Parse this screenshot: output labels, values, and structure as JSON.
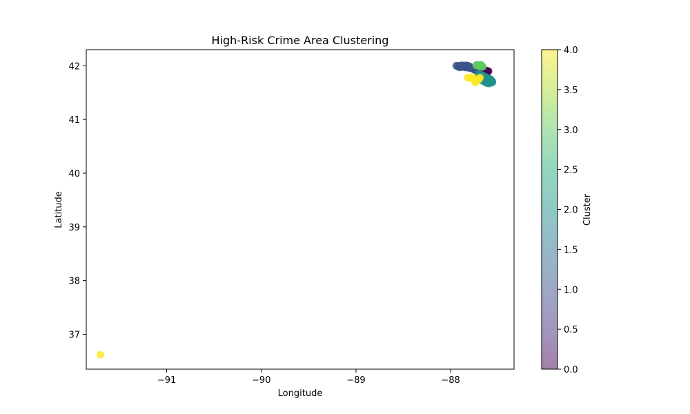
{
  "chart_data": {
    "type": "scatter",
    "title": "High-Risk Crime Area Clustering",
    "xlabel": "Longitude",
    "ylabel": "Latitude",
    "xlim": [
      -91.85,
      -87.33
    ],
    "ylim": [
      36.35,
      42.3
    ],
    "xticks": [
      -91,
      -90,
      -89,
      -88
    ],
    "yticks": [
      37,
      38,
      39,
      40,
      41,
      42
    ],
    "grid": false,
    "colorbar": {
      "label": "Cluster",
      "range": [
        0.0,
        4.0
      ],
      "ticks": [
        "0.0",
        "0.5",
        "1.0",
        "1.5",
        "2.0",
        "2.5",
        "3.0",
        "3.5",
        "4.0"
      ],
      "colormap": "viridis",
      "alpha": 0.5
    },
    "point_alpha": 0.85,
    "series": [
      {
        "cluster": 0,
        "color": "#440154",
        "points": [
          [
            -87.63,
            41.9
          ],
          [
            -87.61,
            41.89
          ],
          [
            -87.62,
            41.91
          ],
          [
            -87.6,
            41.9
          ],
          [
            -87.64,
            41.88
          ],
          [
            -87.62,
            41.88
          ]
        ]
      },
      {
        "cluster": 1,
        "color": "#3b528b",
        "points": [
          [
            -87.94,
            42.0
          ],
          [
            -87.92,
            41.98
          ],
          [
            -87.91,
            42.0
          ],
          [
            -87.89,
            41.99
          ],
          [
            -87.87,
            41.98
          ],
          [
            -87.85,
            41.97
          ],
          [
            -87.83,
            41.98
          ],
          [
            -87.82,
            42.0
          ],
          [
            -87.8,
            41.99
          ],
          [
            -87.79,
            41.97
          ],
          [
            -87.78,
            41.95
          ],
          [
            -87.77,
            41.96
          ],
          [
            -87.76,
            41.94
          ],
          [
            -87.75,
            41.93
          ],
          [
            -87.74,
            41.92
          ],
          [
            -87.73,
            41.93
          ],
          [
            -87.72,
            41.91
          ],
          [
            -87.71,
            41.9
          ],
          [
            -87.7,
            41.89
          ],
          [
            -87.81,
            41.96
          ],
          [
            -87.84,
            42.01
          ],
          [
            -87.86,
            41.99
          ],
          [
            -87.88,
            42.01
          ],
          [
            -87.9,
            41.97
          ]
        ]
      },
      {
        "cluster": 2,
        "color": "#21918c",
        "points": [
          [
            -87.7,
            41.85
          ],
          [
            -87.68,
            41.83
          ],
          [
            -87.66,
            41.82
          ],
          [
            -87.64,
            41.8
          ],
          [
            -87.62,
            41.78
          ],
          [
            -87.6,
            41.77
          ],
          [
            -87.58,
            41.75
          ],
          [
            -87.57,
            41.73
          ],
          [
            -87.56,
            41.71
          ],
          [
            -87.56,
            41.69
          ],
          [
            -87.58,
            41.68
          ],
          [
            -87.6,
            41.67
          ],
          [
            -87.62,
            41.68
          ],
          [
            -87.64,
            41.7
          ],
          [
            -87.66,
            41.72
          ],
          [
            -87.68,
            41.74
          ],
          [
            -87.59,
            41.72
          ],
          [
            -87.61,
            41.74
          ],
          [
            -87.63,
            41.76
          ],
          [
            -87.65,
            41.78
          ],
          [
            -87.67,
            41.8
          ],
          [
            -87.57,
            41.7
          ],
          [
            -87.59,
            41.69
          ],
          [
            -87.61,
            41.71
          ]
        ]
      },
      {
        "cluster": 3,
        "color": "#5ec962",
        "points": [
          [
            -87.72,
            42.02
          ],
          [
            -87.7,
            42.01
          ],
          [
            -87.68,
            42.02
          ],
          [
            -87.67,
            42.0
          ],
          [
            -87.69,
            41.99
          ],
          [
            -87.71,
            42.0
          ],
          [
            -87.73,
            42.01
          ],
          [
            -87.66,
            41.98
          ]
        ]
      },
      {
        "cluster": 4,
        "color": "#fde725",
        "points": [
          [
            -91.7,
            36.62
          ],
          [
            -87.82,
            41.78
          ],
          [
            -87.79,
            41.77
          ],
          [
            -87.76,
            41.76
          ],
          [
            -87.73,
            41.72
          ],
          [
            -87.74,
            41.69
          ],
          [
            -87.7,
            41.75
          ],
          [
            -87.69,
            41.78
          ],
          [
            -87.77,
            41.79
          ]
        ]
      }
    ]
  }
}
